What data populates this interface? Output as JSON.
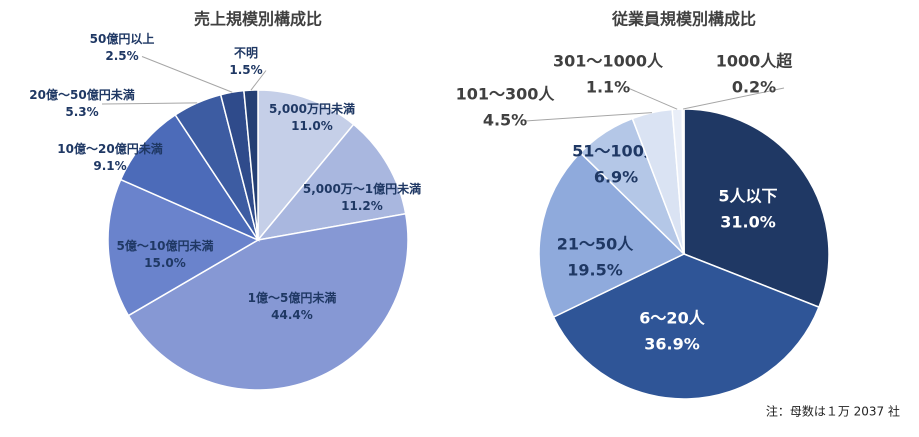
{
  "chart_data": [
    {
      "type": "pie",
      "title": "売上規模別構成比",
      "categories": [
        "5,000万円未満",
        "5,000万～1億円未満",
        "1億～5億円未満",
        "5億～10億円未満",
        "10億～20億円未満",
        "20億～50億円未満",
        "50億円以上",
        "不明"
      ],
      "values": [
        11.0,
        11.2,
        44.4,
        15.0,
        9.1,
        5.3,
        2.5,
        1.5
      ],
      "value_labels": [
        "11.0%",
        "11.2%",
        "44.4%",
        "15.0%",
        "9.1%",
        "5.3%",
        "2.5%",
        "1.5%"
      ],
      "colors": [
        "#c5cfe8",
        "#a9b7df",
        "#8698d4",
        "#6a83cc",
        "#4c6bb9",
        "#3d5ca2",
        "#2f4b8b",
        "#243f74"
      ]
    },
    {
      "type": "pie",
      "title": "従業員規模別構成比",
      "categories": [
        "5人以下",
        "6～20人",
        "21～50人",
        "51～100人",
        "101～300人",
        "301～1000人",
        "1000人超"
      ],
      "values": [
        31.0,
        36.9,
        19.5,
        6.9,
        4.5,
        1.1,
        0.2
      ],
      "value_labels": [
        "31.0%",
        "36.9%",
        "19.5%",
        "6.9%",
        "4.5%",
        "1.1%",
        "0.2%"
      ],
      "colors": [
        "#1f3864",
        "#2f5597",
        "#8faadc",
        "#b4c7e7",
        "#dae3f3",
        "#e9eef8",
        "#f2f2f2"
      ]
    }
  ],
  "note": "注：母数は１万 2037 社"
}
